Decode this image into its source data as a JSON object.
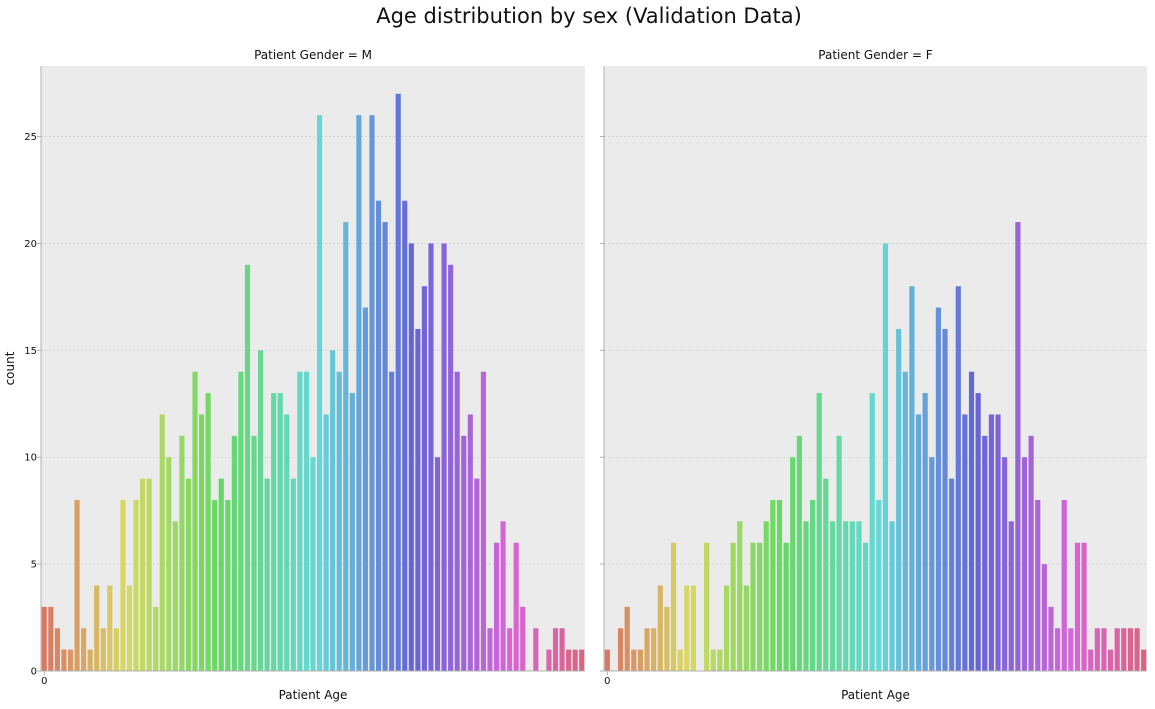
{
  "figure": {
    "title": "Age distribution by sex (Validation Data)"
  },
  "colors": {
    "panel_background": "#ebebeb",
    "grid": "#cfcfcf",
    "axis": "#b0b0b0",
    "text": "#111111"
  },
  "chart_data": [
    {
      "type": "bar",
      "facet_title": "Patient Gender = M",
      "xlabel": "Patient Age",
      "ylabel": "count",
      "x_tick_labels": [
        "0"
      ],
      "y_ticks": [
        0,
        5,
        10,
        15,
        20,
        25
      ],
      "ylim": [
        0,
        28.3
      ],
      "grid": true,
      "values": [
        3,
        3,
        2,
        1,
        1,
        8,
        2,
        1,
        4,
        2,
        4,
        2,
        8,
        4,
        8,
        9,
        9,
        3,
        12,
        10,
        7,
        11,
        9,
        14,
        12,
        13,
        8,
        9,
        8,
        11,
        14,
        19,
        11,
        15,
        9,
        13,
        13,
        12,
        9,
        14,
        14,
        10,
        26,
        12,
        15,
        14,
        21,
        13,
        26,
        17,
        26,
        22,
        21,
        14,
        27,
        22,
        20,
        16,
        18,
        20,
        10,
        20,
        19,
        14,
        11,
        12,
        9,
        14,
        2,
        6,
        7,
        2,
        6,
        3,
        0,
        2,
        0,
        1,
        2,
        2,
        1,
        1,
        1
      ]
    },
    {
      "type": "bar",
      "facet_title": "Patient Gender = F",
      "xlabel": "Patient Age",
      "ylabel": "",
      "x_tick_labels": [
        "0"
      ],
      "y_ticks": [
        0,
        5,
        10,
        15,
        20,
        25
      ],
      "ylim": [
        0,
        28.3
      ],
      "grid": true,
      "values": [
        1,
        0,
        2,
        3,
        1,
        1,
        2,
        2,
        4,
        3,
        6,
        1,
        4,
        4,
        0,
        6,
        1,
        1,
        4,
        6,
        7,
        4,
        6,
        6,
        7,
        8,
        8,
        6,
        10,
        11,
        7,
        8,
        13,
        9,
        7,
        11,
        7,
        7,
        7,
        6,
        13,
        8,
        20,
        7,
        16,
        14,
        18,
        12,
        13,
        10,
        17,
        16,
        9,
        18,
        12,
        14,
        13,
        11,
        12,
        12,
        10,
        7,
        21,
        10,
        11,
        8,
        5,
        3,
        2,
        8,
        2,
        6,
        6,
        1,
        2,
        2,
        1,
        2,
        2,
        2,
        2,
        1
      ]
    }
  ]
}
